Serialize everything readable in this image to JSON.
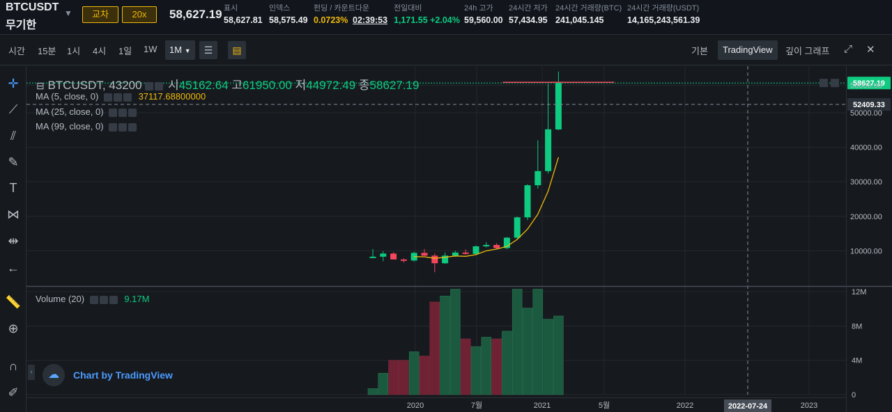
{
  "header": {
    "symbol": "BTCUSDT",
    "contract": "무기한",
    "cross_label": "교차",
    "leverage_label": "20x",
    "last_price": "58,627.19",
    "stats": [
      {
        "label": "표시",
        "value": "58,627.81",
        "color": "#eaecef"
      },
      {
        "label": "인덱스",
        "value": "58,575.49",
        "color": "#eaecef"
      },
      {
        "label": "펀딩 / 카운트다운",
        "value": "0.0723%",
        "value2": "02:39:53",
        "color": "#f0b90b"
      },
      {
        "label": "전일대비",
        "value": "1,171.55 +2.04%",
        "color": "#0ecb81"
      },
      {
        "label": "24h 고가",
        "value": "59,560.00",
        "color": "#eaecef"
      },
      {
        "label": "24시간 저가",
        "value": "57,434.95",
        "color": "#eaecef"
      },
      {
        "label": "24시간 거래량(BTC)",
        "value": "241,045.145",
        "color": "#eaecef"
      },
      {
        "label": "24시간 거래량(USDT)",
        "value": "14,165,243,561.39",
        "color": "#eaecef"
      }
    ]
  },
  "toolbar": {
    "timeframes": [
      "시간",
      "15분",
      "1시",
      "4시",
      "1일",
      "1W",
      "1M"
    ],
    "active_timeframe": "1M",
    "views": [
      "기본",
      "TradingView",
      "깊이 그래프"
    ],
    "active_view": "TradingView"
  },
  "legend": {
    "title": "BTCUSDT, 43200",
    "ohlc": [
      {
        "label": "시",
        "value": "45162.64"
      },
      {
        "label": "고",
        "value": "61950.00"
      },
      {
        "label": "저",
        "value": "44972.49"
      },
      {
        "label": "종",
        "value": "58627.19"
      }
    ],
    "ma5": "MA (5, close, 0)",
    "ma5_value": "37117.68800000",
    "ma25": "MA (25, close, 0)",
    "ma99": "MA (99, close, 0)",
    "volume": "Volume (20)",
    "volume_value": "9.17M"
  },
  "brand": "Chart by TradingView",
  "chart_data": {
    "type": "candlestick",
    "price_axis": {
      "ticks": [
        10000,
        20000,
        30000,
        40000,
        50000,
        58000
      ],
      "tick_labels": [
        "10000.00",
        "20000.00",
        "30000.00",
        "40000.00",
        "50000.00",
        "58000.00"
      ],
      "range": [
        0,
        62500
      ]
    },
    "last_price_label": "58627.19",
    "crosshair_price_label": "52409.33",
    "crosshair_price": 52409.33,
    "volume_axis": {
      "ticks": [
        0,
        4,
        8,
        12
      ],
      "tick_labels": [
        "0",
        "4M",
        "8M",
        "12M"
      ],
      "range": [
        0,
        12.5
      ]
    },
    "time_axis": {
      "ticks": [
        "2020",
        "7월",
        "2021",
        "5월",
        "2022",
        "2023"
      ]
    },
    "crosshair_time_label": "2022-07-24",
    "candles": [
      {
        "o": 8300,
        "h": 10500,
        "l": 8000,
        "c": 8300,
        "v": 0.7
      },
      {
        "o": 8300,
        "h": 9900,
        "l": 7000,
        "c": 9200,
        "v": 2.5
      },
      {
        "o": 9200,
        "h": 9600,
        "l": 7700,
        "c": 7500,
        "v": 4.0
      },
      {
        "o": 7500,
        "h": 7800,
        "l": 6600,
        "c": 7200,
        "v": 4.0
      },
      {
        "o": 7200,
        "h": 9700,
        "l": 6900,
        "c": 9400,
        "v": 5.0
      },
      {
        "o": 9400,
        "h": 10500,
        "l": 8500,
        "c": 8600,
        "v": 4.5
      },
      {
        "o": 8600,
        "h": 9200,
        "l": 3800,
        "c": 6400,
        "v": 10.8
      },
      {
        "o": 6400,
        "h": 9500,
        "l": 6200,
        "c": 8600,
        "v": 11.5
      },
      {
        "o": 8600,
        "h": 10000,
        "l": 8300,
        "c": 9500,
        "v": 12.3
      },
      {
        "o": 9500,
        "h": 10400,
        "l": 8900,
        "c": 9100,
        "v": 6.5
      },
      {
        "o": 9100,
        "h": 11500,
        "l": 8900,
        "c": 11300,
        "v": 5.6
      },
      {
        "o": 11300,
        "h": 12500,
        "l": 11000,
        "c": 11700,
        "v": 6.7
      },
      {
        "o": 11700,
        "h": 12200,
        "l": 10500,
        "c": 10800,
        "v": 6.5
      },
      {
        "o": 10800,
        "h": 14000,
        "l": 10500,
        "c": 13800,
        "v": 7.4
      },
      {
        "o": 13800,
        "h": 19900,
        "l": 13500,
        "c": 19700,
        "v": 12.3
      },
      {
        "o": 19700,
        "h": 29300,
        "l": 18900,
        "c": 29000,
        "v": 10.1
      },
      {
        "o": 29000,
        "h": 42000,
        "l": 28000,
        "c": 33100,
        "v": 12.3
      },
      {
        "o": 33100,
        "h": 58400,
        "l": 32400,
        "c": 45200,
        "v": 8.8
      },
      {
        "o": 45162.64,
        "h": 61950,
        "l": 44972.49,
        "c": 58627.19,
        "v": 9.17
      }
    ],
    "ma5": [
      null,
      null,
      null,
      null,
      8300,
      8260,
      7820,
      8120,
      8500,
      8400,
      8900,
      10000,
      10500,
      11300,
      13300,
      16300,
      20600,
      27300,
      37117.688
    ],
    "colors": {
      "up": "#0ecb81",
      "down": "#f6465d",
      "ma5": "#f0b90b"
    }
  }
}
